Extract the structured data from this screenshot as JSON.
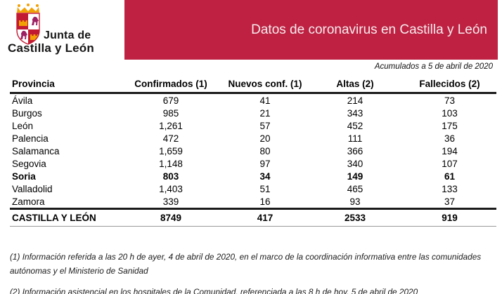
{
  "logo": {
    "line1": "Junta de",
    "line2": "Castilla y León"
  },
  "banner": {
    "title": "Datos de coronavirus en Castilla y León",
    "bg_color": "#BE2142",
    "text_color": "#F6ECEE"
  },
  "subtitle": "Acumulados a 5 de abril de 2020",
  "table": {
    "columns": [
      "Provincia",
      "Confirmados (1)",
      "Nuevos conf. (1)",
      "Altas (2)",
      "Fallecidos (2)"
    ],
    "rows": [
      {
        "provincia": "Ávila",
        "confirmados": "679",
        "nuevos": "41",
        "altas": "214",
        "fallecidos": "73",
        "bold": false
      },
      {
        "provincia": "Burgos",
        "confirmados": "985",
        "nuevos": "21",
        "altas": "343",
        "fallecidos": "103",
        "bold": false
      },
      {
        "provincia": "León",
        "confirmados": "1,261",
        "nuevos": "57",
        "altas": "452",
        "fallecidos": "175",
        "bold": false
      },
      {
        "provincia": "Palencia",
        "confirmados": "472",
        "nuevos": "20",
        "altas": "111",
        "fallecidos": "36",
        "bold": false
      },
      {
        "provincia": "Salamanca",
        "confirmados": "1,659",
        "nuevos": "80",
        "altas": "366",
        "fallecidos": "194",
        "bold": false
      },
      {
        "provincia": "Segovia",
        "confirmados": "1,148",
        "nuevos": "97",
        "altas": "340",
        "fallecidos": "107",
        "bold": false
      },
      {
        "provincia": "Soria",
        "confirmados": "803",
        "nuevos": "34",
        "altas": "149",
        "fallecidos": "61",
        "bold": true
      },
      {
        "provincia": "Valladolid",
        "confirmados": "1,403",
        "nuevos": "51",
        "altas": "465",
        "fallecidos": "133",
        "bold": false
      },
      {
        "provincia": "Zamora",
        "confirmados": "339",
        "nuevos": "16",
        "altas": "93",
        "fallecidos": "37",
        "bold": false
      }
    ],
    "total": {
      "provincia": "CASTILLA Y LEÓN",
      "confirmados": "8749",
      "nuevos": "417",
      "altas": "2533",
      "fallecidos": "919"
    }
  },
  "footnotes": [
    "(1) Información referida a las 20 h de ayer, 4 de abril de 2020, en el marco de la coordinación informativa entre las comunidades autónomas y el Ministerio de Sanidad",
    "(2) Información asistencial en los hospitales de la Comunidad, referenciada a las 8 h de hoy, 5 de abril de 2020"
  ],
  "logo_colors": {
    "shield_red": "#C31A33",
    "lion_purple": "#9D2064",
    "castle_gold": "#F2A104",
    "crown_gold": "#F2A104"
  }
}
